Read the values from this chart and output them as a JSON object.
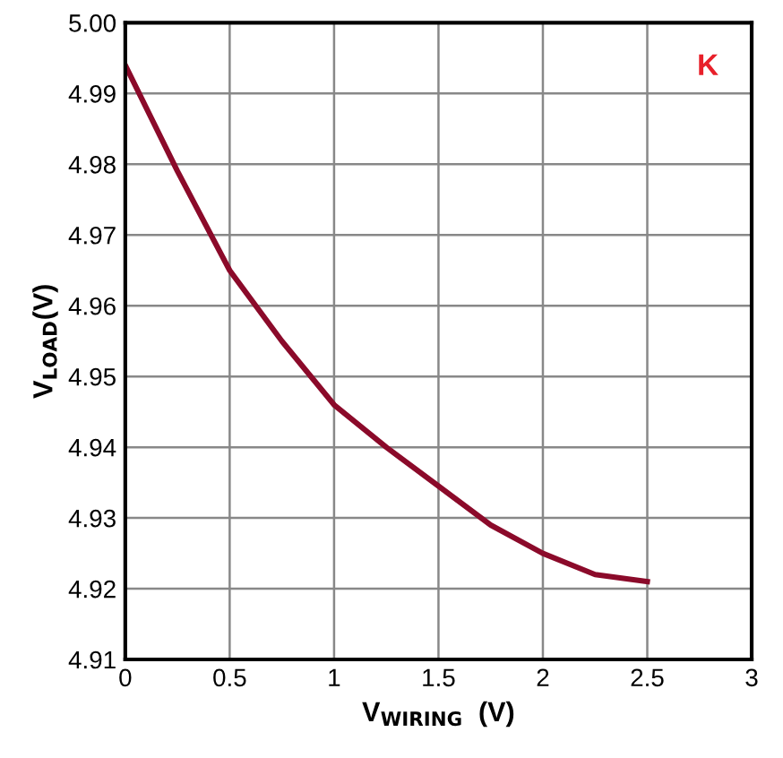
{
  "chart_data": {
    "type": "line",
    "xlabel": "V$_{WIRING}$  (V)",
    "ylabel": "V$_{LOAD}$(V)",
    "x": [
      0,
      0.25,
      0.5,
      0.75,
      1.0,
      1.25,
      1.5,
      1.75,
      2.0,
      2.25,
      2.5
    ],
    "series": [
      {
        "color": "#8b0a2a",
        "values": [
          4.994,
          4.979,
          4.965,
          4.955,
          4.946,
          4.94,
          4.9345,
          4.929,
          4.925,
          4.922,
          4.921
        ]
      }
    ],
    "xlim": [
      0,
      3
    ],
    "xticks": [
      0,
      0.5,
      1,
      1.5,
      2,
      2.5,
      3
    ],
    "ylim": [
      4.91,
      5.0
    ],
    "yticks": [
      4.91,
      4.92,
      4.93,
      4.94,
      4.95,
      4.96,
      4.97,
      4.98,
      4.99,
      {
        "value": 5.0,
        "label": "5.00"
      }
    ],
    "grid": true,
    "marker": "none",
    "line_style": "solid",
    "annotations": [
      "K"
    ]
  }
}
